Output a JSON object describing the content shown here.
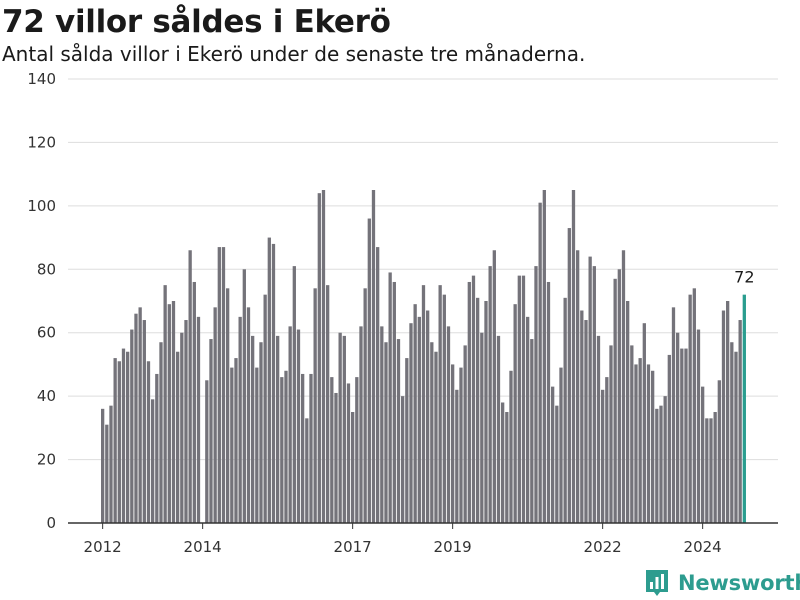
{
  "header": {
    "title": "72 villor såldes i Ekerö",
    "subtitle": "Antal sålda villor i Ekerö under de senaste tre månaderna."
  },
  "brand": {
    "name": "Newsworthy",
    "logo_icon": "newsworthy-chart-icon",
    "color": "#2d9c8f"
  },
  "colors": {
    "bar": "#74737a",
    "highlight": "#2a9d8f",
    "grid": "#dddddd",
    "axis": "#333333"
  },
  "chart_data": {
    "type": "bar",
    "title": "72 villor såldes i Ekerö",
    "subtitle": "Antal sålda villor i Ekerö under de senaste tre månaderna.",
    "xlabel": "",
    "ylabel": "",
    "ylim": [
      0,
      140
    ],
    "yticks": [
      0,
      20,
      40,
      60,
      80,
      100,
      120,
      140
    ],
    "grid": true,
    "x_tick_labels": [
      "2012",
      "2014",
      "2017",
      "2019",
      "2022",
      "2024"
    ],
    "x_tick_months": [
      "2012-01",
      "2014-01",
      "2017-01",
      "2019-01",
      "2022-01",
      "2024-01"
    ],
    "x_start": "2012-01",
    "series": [
      {
        "values": [
          36,
          31,
          37,
          52,
          51,
          55,
          54,
          61,
          66,
          68,
          64,
          51,
          39,
          47,
          57,
          75,
          69,
          70,
          54,
          60,
          64,
          86,
          76,
          65,
          0,
          45,
          58,
          68,
          87,
          87,
          74,
          49,
          52,
          65,
          80,
          68,
          59,
          49,
          57,
          72,
          90,
          88,
          59,
          46,
          48,
          62,
          81,
          61,
          47,
          33,
          47,
          74,
          104,
          105,
          75,
          46,
          41,
          60,
          59,
          44,
          35,
          46,
          62,
          74,
          96,
          105,
          87,
          62,
          57,
          79,
          76,
          58,
          40,
          52,
          63,
          69,
          65,
          75,
          67,
          57,
          54,
          75,
          72,
          62,
          50,
          42,
          49,
          56,
          76,
          78,
          71,
          60,
          70,
          81,
          86,
          59,
          38,
          35,
          48,
          69,
          78,
          78,
          65,
          58,
          81,
          101,
          105,
          76,
          43,
          37,
          49,
          71,
          93,
          105,
          86,
          67,
          64,
          84,
          81,
          59,
          42,
          46,
          56,
          77,
          80,
          86,
          70,
          56,
          50,
          52,
          63,
          50,
          48,
          36,
          37,
          40,
          53,
          68,
          60,
          55,
          55,
          72,
          74,
          61,
          43,
          33,
          33,
          35,
          45,
          67,
          70,
          57,
          54,
          64,
          72
        ]
      }
    ],
    "highlight_label": "72"
  }
}
